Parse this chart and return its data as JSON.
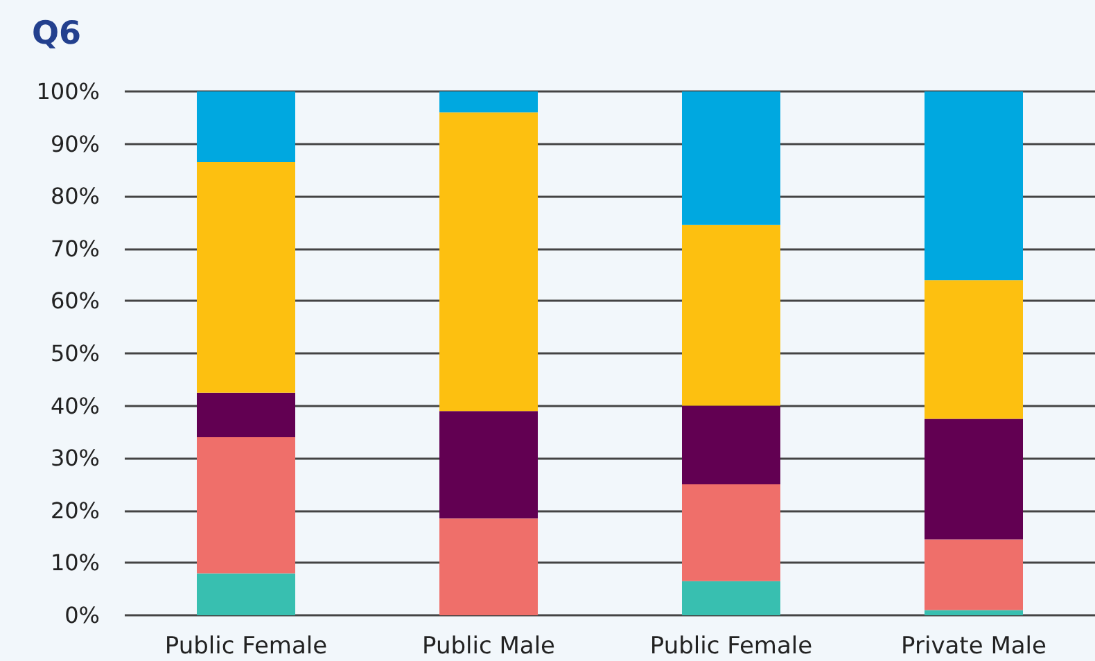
{
  "chart_data": {
    "type": "bar",
    "title": "Q6",
    "categories": [
      "Public Female",
      "Public Male",
      "Public Female",
      "Private Male"
    ],
    "series": [
      {
        "color": "#38bfb0",
        "values": [
          8,
          0,
          6.5,
          1
        ]
      },
      {
        "color": "#ef6f6a",
        "values": [
          26,
          18.5,
          18.5,
          13.5
        ]
      },
      {
        "color": "#620052",
        "values": [
          8.5,
          20.5,
          15,
          23
        ]
      },
      {
        "color": "#fdc010",
        "values": [
          44,
          57,
          34.5,
          26.5
        ]
      },
      {
        "color": "#00a8e0",
        "values": [
          13.5,
          4,
          25.5,
          36
        ]
      }
    ],
    "stacked": true,
    "ylim": [
      0,
      100
    ],
    "yticks": [
      {
        "value": 0,
        "label": "0%"
      },
      {
        "value": 10,
        "label": "10%"
      },
      {
        "value": 20,
        "label": "20%"
      },
      {
        "value": 30,
        "label": "30%"
      },
      {
        "value": 40,
        "label": "40%"
      },
      {
        "value": 50,
        "label": "50%"
      },
      {
        "value": 60,
        "label": "60%"
      },
      {
        "value": 70,
        "label": "70%"
      },
      {
        "value": 80,
        "label": "80%"
      },
      {
        "value": 90,
        "label": "90%"
      },
      {
        "value": 100,
        "label": "100%"
      }
    ],
    "grid": "y"
  }
}
